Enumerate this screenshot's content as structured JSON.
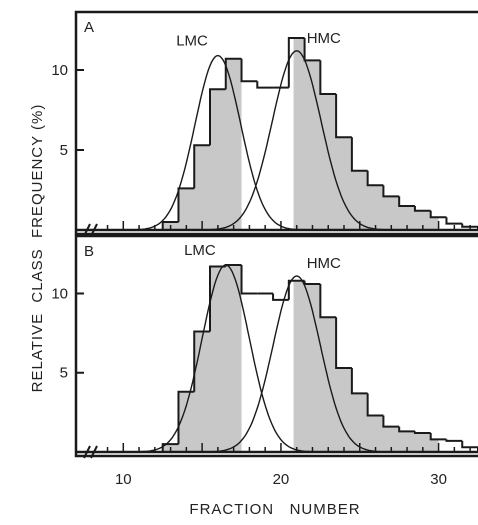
{
  "colors": {
    "ink": "#1a1a1a",
    "fill": "#c8c8c8",
    "background": "#ffffff"
  },
  "chart_data": [
    {
      "type": "histogram",
      "panel": "A",
      "xlim": [
        7,
        32.5
      ],
      "ylim": [
        0,
        13.5
      ],
      "bin_start": 12.5,
      "bin_width": 1,
      "x": [
        12.5,
        13.5,
        14.5,
        15.5,
        16.5,
        17.5,
        18.5,
        19.5,
        20.5,
        21.5,
        22.5,
        23.5,
        24.5,
        25.5,
        26.5,
        27.5,
        28.5,
        29.5,
        30.5,
        31.5
      ],
      "values": [
        0.5,
        2.6,
        5.3,
        8.8,
        10.7,
        9.3,
        8.9,
        8.9,
        12.0,
        10.6,
        8.5,
        5.8,
        3.7,
        2.8,
        2.1,
        1.5,
        1.2,
        0.8,
        0.4,
        0.2
      ],
      "curves": [
        {
          "label": "LMC",
          "peak_x": 16,
          "peak_y": 10.9,
          "sigma": 1.45
        },
        {
          "label": "HMC",
          "peak_x": 21,
          "peak_y": 11.2,
          "sigma": 1.55
        }
      ],
      "shaded_x": [
        [
          12.5,
          17.5
        ],
        [
          20.8,
          30
        ]
      ],
      "labels": {
        "panel": "A",
        "left_peak": "LMC",
        "right_peak": "HMC"
      }
    },
    {
      "type": "histogram",
      "panel": "B",
      "xlim": [
        7,
        32.5
      ],
      "ylim": [
        0,
        13.5
      ],
      "bin_start": 12.5,
      "bin_width": 1,
      "x": [
        12.5,
        13.5,
        14.5,
        15.5,
        16.5,
        17.5,
        18.5,
        19.5,
        20.5,
        21.5,
        22.5,
        23.5,
        24.5,
        25.5,
        26.5,
        27.5,
        28.5,
        29.5,
        30.5,
        31.5
      ],
      "values": [
        0.5,
        3.8,
        7.6,
        11.7,
        11.8,
        10.0,
        10.0,
        9.6,
        10.8,
        10.6,
        8.5,
        5.3,
        3.7,
        2.3,
        1.6,
        1.3,
        1.2,
        0.8,
        0.7,
        0.3
      ],
      "curves": [
        {
          "label": "LMC",
          "peak_x": 16.5,
          "peak_y": 11.8,
          "sigma": 1.5
        },
        {
          "label": "HMC",
          "peak_x": 21,
          "peak_y": 11.1,
          "sigma": 1.5
        }
      ],
      "shaded_x": [
        [
          12.5,
          17.5
        ],
        [
          20.8,
          30
        ]
      ],
      "labels": {
        "panel": "B",
        "left_peak": "LMC",
        "right_peak": "HMC"
      }
    }
  ],
  "axes": {
    "xlabel": "FRACTION   NUMBER",
    "ylabel": "RELATIVE  CLASS  FREQUENCY (%)",
    "x_ticks": [
      10,
      20,
      30
    ],
    "y_ticks": [
      5,
      10
    ]
  }
}
